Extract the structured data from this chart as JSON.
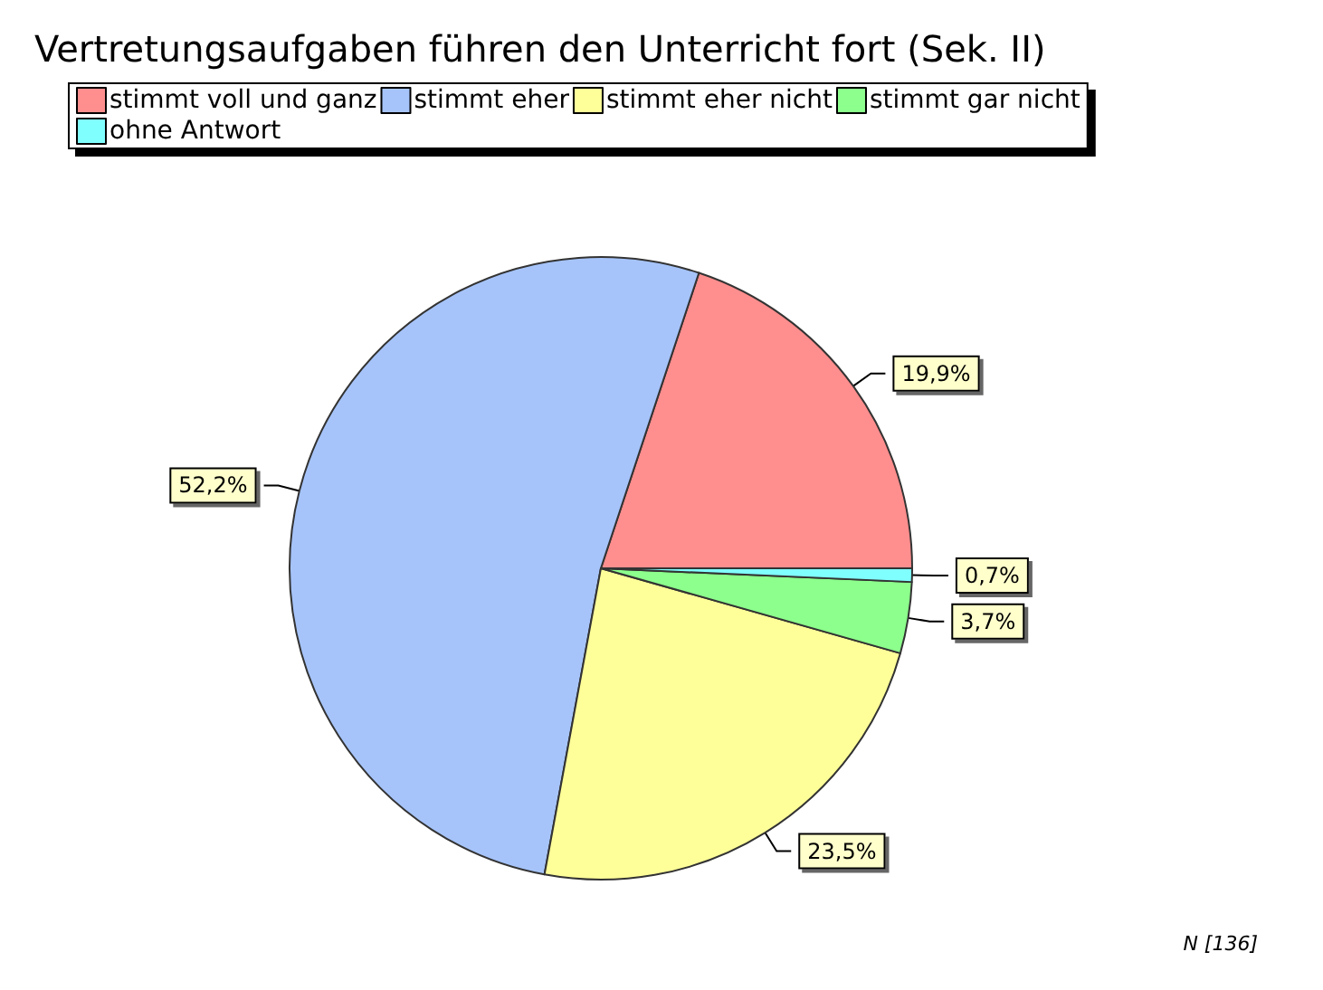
{
  "chart_data": {
    "type": "pie",
    "title": "Vertretungsaufgaben führen den Unterricht fort (Sek. II)",
    "categories": [
      "stimmt voll und ganz",
      "stimmt eher",
      "stimmt eher nicht",
      "stimmt gar nicht",
      "ohne Antwort"
    ],
    "values": [
      19.9,
      52.2,
      23.5,
      3.7,
      0.7
    ],
    "colors": [
      "#ff8e8e",
      "#a6c4fa",
      "#ffff99",
      "#8cff8c",
      "#80ffff"
    ],
    "value_labels": [
      "19,9%",
      "52,2%",
      "23,5%",
      "3,7%",
      "0,7%"
    ],
    "legend": "top",
    "annotations": [
      "N [136]"
    ]
  }
}
